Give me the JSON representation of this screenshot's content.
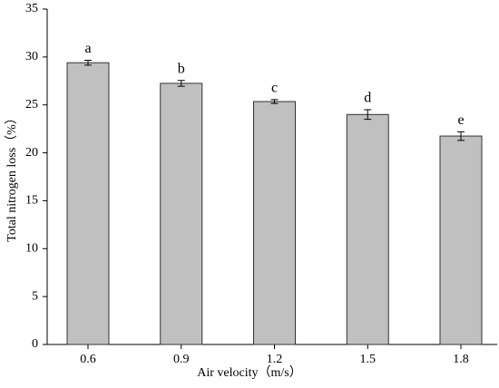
{
  "chart_data": {
    "type": "bar",
    "x_label": "Air velocity（m/s）",
    "y_label": "Total nitrogen loss（%）",
    "categories": [
      "0.6",
      "0.9",
      "1.2",
      "1.5",
      "1.8"
    ],
    "values": [
      29.4,
      27.25,
      25.35,
      24.0,
      21.75
    ],
    "errors": [
      0.25,
      0.3,
      0.2,
      0.5,
      0.45
    ],
    "annotations": [
      "a",
      "b",
      "c",
      "d",
      "e"
    ],
    "color": "#c0c0c0",
    "ylim": [
      0,
      35
    ],
    "yticks": [
      0,
      5,
      10,
      15,
      20,
      25,
      30,
      35
    ]
  }
}
